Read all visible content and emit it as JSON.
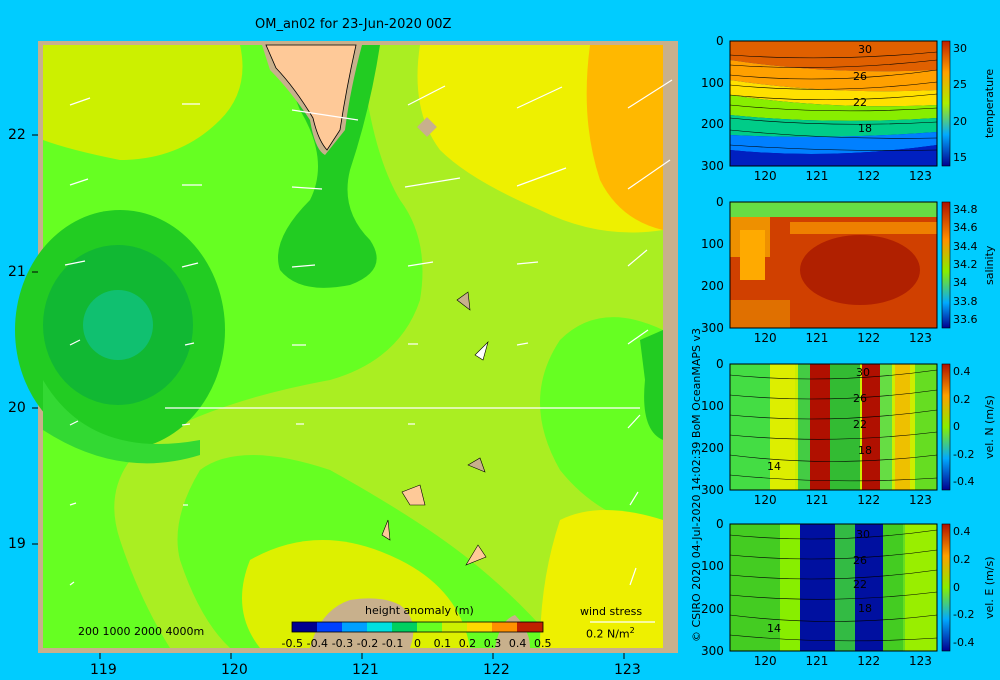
{
  "title": "OM_an02 for 23-Jun-2020 00Z",
  "map": {
    "x_ticks": [
      "119",
      "120",
      "121",
      "122",
      "123"
    ],
    "y_ticks": [
      "22",
      "21",
      "20",
      "19"
    ],
    "depth_legend": "200  1000  2000  4000m",
    "colorbar": {
      "label": "height anomaly (m)",
      "ticks": [
        "-0.5",
        "-0.4",
        "-0.3",
        "-0.2",
        "-0.1",
        "0",
        "0.1",
        "0.2",
        "0.3",
        "0.4",
        "0.5"
      ]
    },
    "wind_stress": {
      "label": "wind stress",
      "scale": "0.2 N/m",
      "sup": "2"
    },
    "colors": {
      "land": "#fec998",
      "shelf": "#c8b08c",
      "frame": "#c8b08c",
      "sea": "#00ccff"
    }
  },
  "credit": "© CSIRO 2020  04-Jul-2020 14:02:39 BoM OceanMAPS v3",
  "panels": [
    {
      "name": "temperature",
      "cbar_label": "temperature",
      "y_ticks": [
        "0",
        "100",
        "200",
        "300"
      ],
      "x_ticks": [
        "120",
        "121",
        "122",
        "123"
      ],
      "cbar_ticks": [
        "30",
        "25",
        "20",
        "15"
      ],
      "contour_labels": [
        "30",
        "26",
        "22",
        "18"
      ]
    },
    {
      "name": "salinity",
      "cbar_label": "salinity",
      "y_ticks": [
        "0",
        "100",
        "200",
        "300"
      ],
      "x_ticks": [
        "120",
        "121",
        "122",
        "123"
      ],
      "cbar_ticks": [
        "34.8",
        "34.6",
        "34.4",
        "34.2",
        "34",
        "33.8",
        "33.6"
      ],
      "contour_labels": []
    },
    {
      "name": "vel-n",
      "cbar_label": "vel. N (m/s)",
      "y_ticks": [
        "0",
        "100",
        "200",
        "300"
      ],
      "x_ticks": [
        "120",
        "121",
        "122",
        "123"
      ],
      "cbar_ticks": [
        "0.4",
        "0.2",
        "0",
        "-0.2",
        "-0.4"
      ],
      "contour_labels": [
        "30",
        "26",
        "22",
        "18",
        "14"
      ]
    },
    {
      "name": "vel-e",
      "cbar_label": "vel. E (m/s)",
      "y_ticks": [
        "0",
        "100",
        "200",
        "300"
      ],
      "x_ticks": [
        "120",
        "121",
        "122",
        "123"
      ],
      "cbar_ticks": [
        "0.4",
        "0.2",
        "0",
        "-0.2",
        "-0.4"
      ],
      "contour_labels": [
        "30",
        "26",
        "22",
        "18",
        "14"
      ]
    }
  ]
}
